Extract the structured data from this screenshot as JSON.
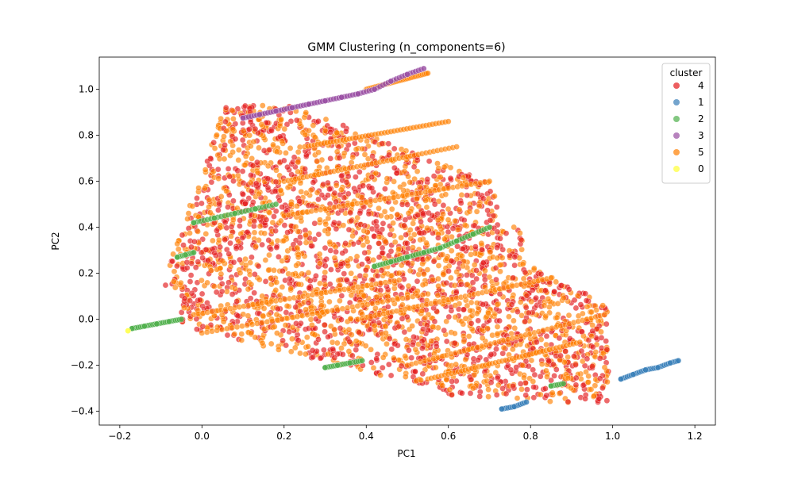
{
  "chart_data": {
    "type": "scatter",
    "title": "GMM Clustering (n_components=6)",
    "xlabel": "PC1",
    "ylabel": "PC2",
    "xlim": [
      -0.25,
      1.25
    ],
    "ylim": [
      -0.46,
      1.14
    ],
    "xticks": [
      "−0.2",
      "0.0",
      "0.2",
      "0.4",
      "0.6",
      "0.8",
      "1.0",
      "1.2"
    ],
    "xtick_values": [
      -0.2,
      0.0,
      0.2,
      0.4,
      0.6,
      0.8,
      1.0,
      1.2
    ],
    "yticks": [
      "−0.4",
      "−0.2",
      "0.0",
      "0.2",
      "0.4",
      "0.6",
      "0.8",
      "1.0"
    ],
    "ytick_values": [
      -0.4,
      -0.2,
      0.0,
      0.2,
      0.4,
      0.6,
      0.8,
      1.0
    ],
    "grid": false,
    "legend": {
      "title": "cluster",
      "placement": "top-right",
      "entries": [
        "4",
        "1",
        "2",
        "3",
        "5",
        "0"
      ]
    },
    "series": [
      {
        "name": "3",
        "color": "#984ea3",
        "x": [
          0.1,
          0.14,
          0.18,
          0.22,
          0.26,
          0.3,
          0.34,
          0.38,
          0.42,
          0.46,
          0.5,
          0.54
        ],
        "y": [
          0.875,
          0.89,
          0.905,
          0.92,
          0.935,
          0.95,
          0.965,
          0.98,
          1.0,
          1.035,
          1.065,
          1.09
        ]
      },
      {
        "name": "2",
        "color": "#4daf4a",
        "x": [
          -0.17,
          -0.14,
          -0.11,
          -0.08,
          -0.05,
          0.3,
          0.33,
          0.36,
          0.39,
          -0.02,
          0.03,
          0.08,
          0.13,
          0.18,
          -0.06,
          -0.04,
          -0.02,
          0.42,
          0.46,
          0.5,
          0.54,
          0.58,
          0.62,
          0.66,
          0.7,
          0.85,
          0.88
        ],
        "y": [
          -0.04,
          -0.03,
          -0.02,
          -0.01,
          0.0,
          -0.21,
          -0.2,
          -0.19,
          -0.18,
          0.42,
          0.44,
          0.46,
          0.48,
          0.5,
          0.27,
          0.28,
          0.29,
          0.23,
          0.25,
          0.27,
          0.29,
          0.31,
          0.34,
          0.37,
          0.4,
          -0.29,
          -0.28
        ]
      },
      {
        "name": "1",
        "color": "#377eb8",
        "x": [
          0.73,
          0.76,
          0.79,
          1.02,
          1.05,
          1.08,
          1.11,
          1.14,
          1.16
        ],
        "y": [
          -0.39,
          -0.38,
          -0.36,
          -0.26,
          -0.24,
          -0.22,
          -0.21,
          -0.19,
          -0.18
        ]
      },
      {
        "name": "0",
        "color": "#ffff33",
        "x": [
          -0.18
        ],
        "y": [
          -0.05
        ]
      }
    ]
  }
}
